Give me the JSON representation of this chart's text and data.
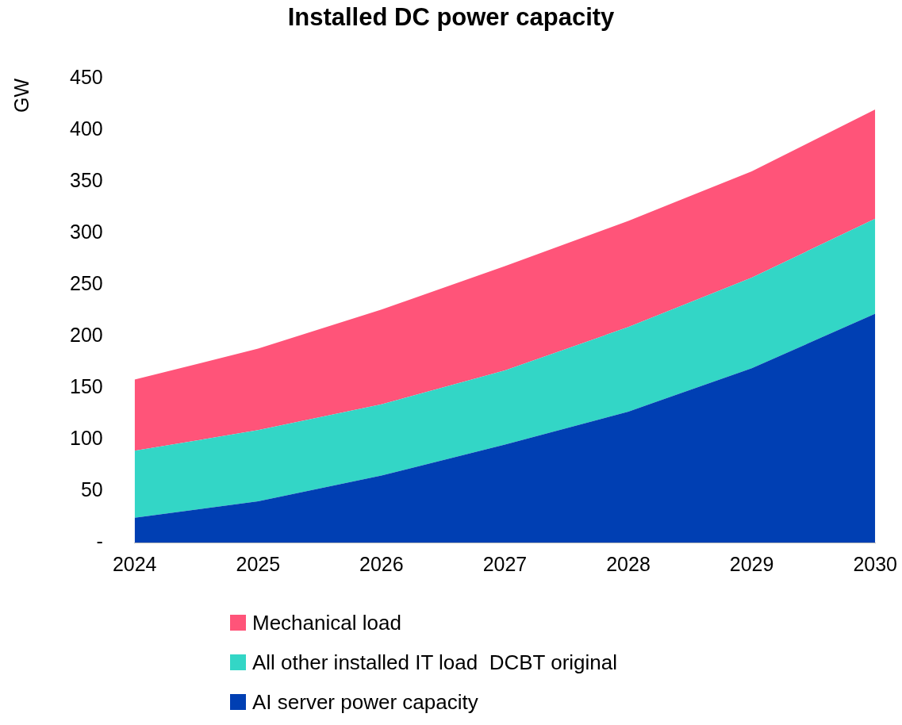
{
  "chart_data": {
    "type": "area",
    "title": "Installed DC power capacity",
    "ylabel": "GW",
    "categories": [
      "2024",
      "2025",
      "2026",
      "2027",
      "2028",
      "2029",
      "2030"
    ],
    "stacked": true,
    "series": [
      {
        "name": "AI server power capacity",
        "color": "#003fb3",
        "values": [
          24,
          40,
          65,
          95,
          127,
          169,
          222
        ]
      },
      {
        "name": "All other installed IT load  DCBT original",
        "color": "#33d6c6",
        "values": [
          65,
          69,
          69,
          72,
          82,
          88,
          92
        ]
      },
      {
        "name": "Mechanical load",
        "color": "#ff5479",
        "values": [
          69,
          79,
          92,
          101,
          103,
          103,
          106
        ]
      }
    ],
    "ylim": [
      0,
      450
    ],
    "yticks": [
      {
        "value": 0,
        "label": "-"
      },
      50,
      100,
      150,
      200,
      250,
      300,
      350,
      400,
      450
    ],
    "grid": false,
    "legend": "bottom"
  }
}
